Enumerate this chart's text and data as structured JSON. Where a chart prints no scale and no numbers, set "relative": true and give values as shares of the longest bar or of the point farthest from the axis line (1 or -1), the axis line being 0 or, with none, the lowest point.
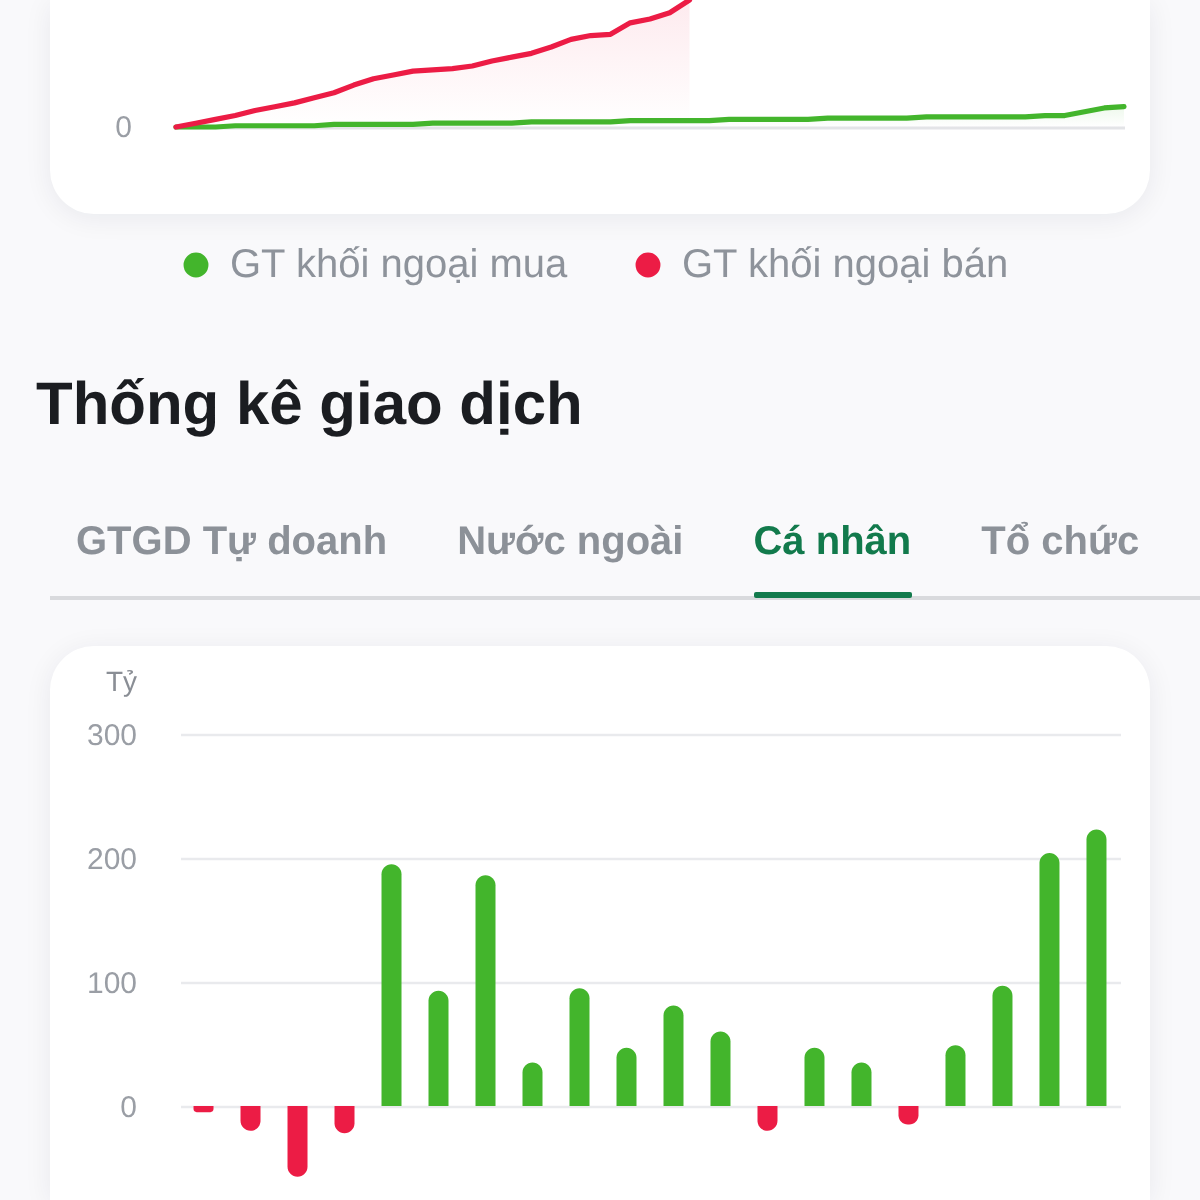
{
  "chart_data": [
    {
      "type": "area",
      "relative": true,
      "categories": [
        null,
        null,
        null,
        null,
        null,
        null,
        null,
        null,
        null,
        null,
        null,
        null,
        null,
        null,
        null,
        null,
        null,
        null,
        null,
        null,
        null,
        null,
        null,
        null,
        null,
        null,
        null,
        null,
        null,
        null,
        null,
        null,
        null,
        null,
        null,
        null,
        null,
        null,
        null,
        null,
        null,
        null,
        null,
        null,
        null,
        null,
        null,
        null,
        null
      ],
      "series": [
        {
          "name": "GT khối ngoại mua",
          "color": "#43b52c",
          "values": [
            0,
            0,
            0,
            0.01,
            0.01,
            0.01,
            0.01,
            0.01,
            0.02,
            0.02,
            0.02,
            0.02,
            0.02,
            0.03,
            0.03,
            0.03,
            0.03,
            0.03,
            0.04,
            0.04,
            0.04,
            0.04,
            0.04,
            0.05,
            0.05,
            0.05,
            0.05,
            0.05,
            0.06,
            0.06,
            0.06,
            0.06,
            0.06,
            0.07,
            0.07,
            0.07,
            0.07,
            0.07,
            0.08,
            0.08,
            0.08,
            0.08,
            0.08,
            0.08,
            0.09,
            0.09,
            0.12,
            0.15,
            0.16
          ]
        },
        {
          "name": "GT khối ngoại bán",
          "color": "#ec1c45",
          "values": [
            0,
            0.03,
            0.06,
            0.09,
            0.13,
            0.16,
            0.19,
            0.23,
            0.27,
            0.33,
            0.38,
            0.41,
            0.44,
            0.45,
            0.46,
            0.48,
            0.52,
            0.55,
            0.58,
            0.63,
            0.69,
            0.72,
            0.73,
            0.82,
            0.85,
            0.9,
            1,
            null,
            null,
            null,
            null,
            null,
            null,
            null,
            null,
            null,
            null,
            null,
            null,
            null,
            null,
            null,
            null,
            null,
            null,
            null,
            null,
            null,
            null
          ]
        }
      ],
      "annotations": [
        "0"
      ],
      "legend": "bottom"
    },
    {
      "type": "bar",
      "title": "Thống kê giao dịch",
      "annotations": [
        "GTGD Tự doanh",
        "Nước ngoài",
        "Cá nhân",
        "Tổ chức"
      ],
      "ylabel": "Tỷ",
      "categories": [
        null,
        null,
        null,
        null,
        null,
        null,
        null,
        null,
        null,
        null,
        null,
        null,
        null,
        null,
        null,
        null,
        null,
        null,
        null,
        null
      ],
      "values": [
        -5,
        -20,
        -57,
        -22,
        195,
        93,
        186,
        35,
        95,
        47,
        81,
        60,
        -20,
        47,
        35,
        -15,
        49,
        97,
        204,
        223
      ],
      "colors": [
        "#ec1c45",
        "#ec1c45",
        "#ec1c45",
        "#ec1c45",
        "#43b52c",
        "#43b52c",
        "#43b52c",
        "#43b52c",
        "#43b52c",
        "#43b52c",
        "#43b52c",
        "#43b52c",
        "#ec1c45",
        "#43b52c",
        "#43b52c",
        "#ec1c45",
        "#43b52c",
        "#43b52c",
        "#43b52c",
        "#43b52c"
      ],
      "ylim": [
        -57,
        300
      ],
      "yticks": [
        0,
        100,
        200,
        300
      ],
      "grid": "y"
    }
  ]
}
